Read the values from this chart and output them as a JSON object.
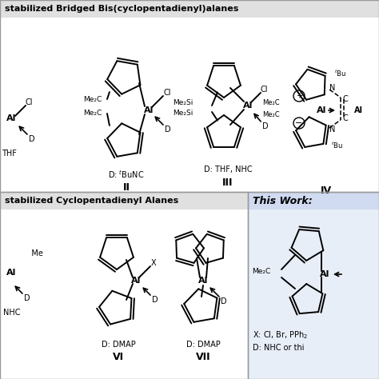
{
  "title_top": "stabilized Bridged Bis(cyclopentadienyl)alanes",
  "title_bottom_left": "stabilized Cyclopentadienyl Alanes",
  "title_bottom_right": "This Work:",
  "bg_color": "#ffffff",
  "header_gray": "#e0e0e0",
  "header_blue": "#d0daf0",
  "panel_white": "#ffffff",
  "panel_blue_light": "#e8eef8",
  "label_II": "II",
  "label_III": "III",
  "label_IV": "IV",
  "label_VI": "VI",
  "label_VII": "VII",
  "donor_II": "D: $^t$BuNC",
  "donor_III": "D: THF, NHC",
  "donor_VI": "D: DMAP",
  "donor_VII": "D: DMAP",
  "this_work_x": "X: Cl, Br, PPh$_2$",
  "this_work_d": "D: NHC or thi"
}
